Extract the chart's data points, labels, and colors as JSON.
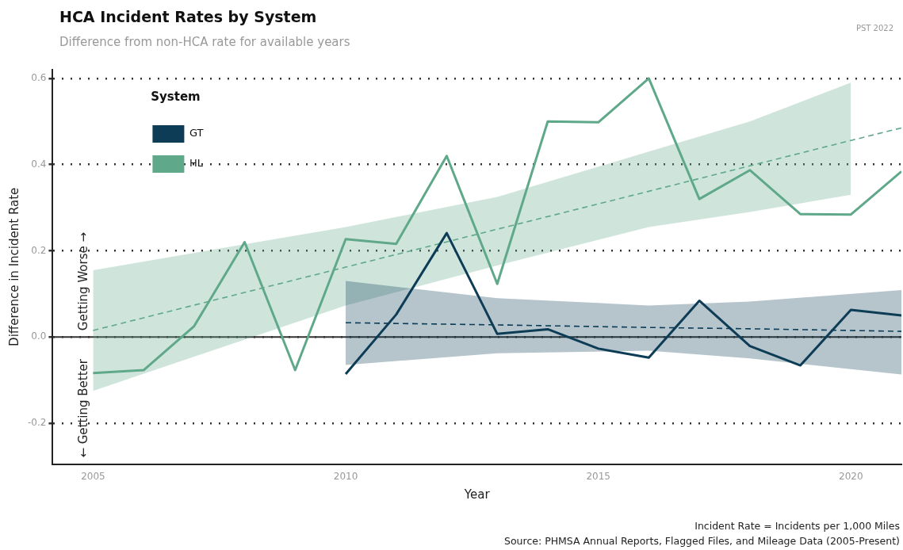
{
  "chart_data": {
    "type": "line",
    "title": "HCA Incident Rates by System",
    "subtitle": "Difference from non-HCA rate for available years",
    "xlabel": "Year",
    "ylabel": "Difference in Incident Rate",
    "legend_title": "System",
    "annotations": [
      "PST 2022",
      "Getting Worse →",
      "← Getting Better",
      "Incident Rate = Incidents per 1,000 Miles",
      "Source: PHMSA Annual Reports, Flagged Files, and Mileage Data (2005-Present)"
    ],
    "xlim": [
      2004.2,
      2021
    ],
    "xticks": [
      2005,
      2010,
      2015,
      2020
    ],
    "ylim": [
      -0.295,
      0.62
    ],
    "yticks": [
      {
        "value": -0.2,
        "label": "-0.2"
      },
      {
        "value": 0,
        "label": "0.0"
      },
      {
        "value": 0.2,
        "label": "0.2"
      },
      {
        "value": 0.4,
        "label": "0.4"
      },
      {
        "value": 0.6,
        "label": "0.6"
      }
    ],
    "grid": "y",
    "legend": "top left",
    "marker": "none",
    "line_style": "solid",
    "ref_lines": [
      {
        "axis": "y",
        "value": 0,
        "color": "#333333"
      }
    ],
    "series": [
      {
        "name": "GT",
        "color": "#0d3d56",
        "x": [
          2010,
          2011,
          2012,
          2013,
          2014,
          2015,
          2016,
          2017,
          2018,
          2019,
          2020,
          2021
        ],
        "values": [
          -0.086,
          0.052,
          0.241,
          0.007,
          0.018,
          -0.027,
          -0.048,
          0.084,
          -0.021,
          -0.066,
          0.063,
          0.05
        ]
      },
      {
        "name": "HL",
        "color": "#5fa88a",
        "x": [
          2005,
          2006,
          2007,
          2008,
          2009,
          2010,
          2011,
          2012,
          2013,
          2014,
          2015,
          2016,
          2017,
          2018,
          2019,
          2020,
          2021
        ],
        "values": [
          -0.084,
          -0.077,
          0.025,
          0.22,
          -0.077,
          0.227,
          0.216,
          0.42,
          0.123,
          0.5,
          0.498,
          0.6,
          0.32,
          0.387,
          0.285,
          0.284,
          0.384
        ]
      },
      {
        "color": "#0d3d56",
        "line_style": "dashed",
        "x": [
          2010,
          2013,
          2016,
          2018,
          2021
        ],
        "values": [
          0.033,
          0.028,
          0.022,
          0.019,
          0.013
        ],
        "lower": [
          -0.065,
          -0.038,
          -0.032,
          -0.05,
          -0.087
        ],
        "upper": [
          0.13,
          0.09,
          0.073,
          0.082,
          0.109
        ]
      },
      {
        "color": "#5fa88a",
        "line_style": "dashed",
        "x": [
          2005,
          2010,
          2013,
          2016,
          2018,
          2020,
          2021
        ],
        "values": [
          0.015,
          0.162,
          0.25,
          0.338,
          0.397,
          0.456,
          0.485
        ],
        "lower": [
          -0.125,
          0.073,
          0.166,
          0.255,
          0.29,
          0.33,
          null
        ],
        "upper": [
          0.155,
          0.255,
          0.325,
          0.43,
          0.5,
          0.59,
          null
        ]
      }
    ]
  }
}
